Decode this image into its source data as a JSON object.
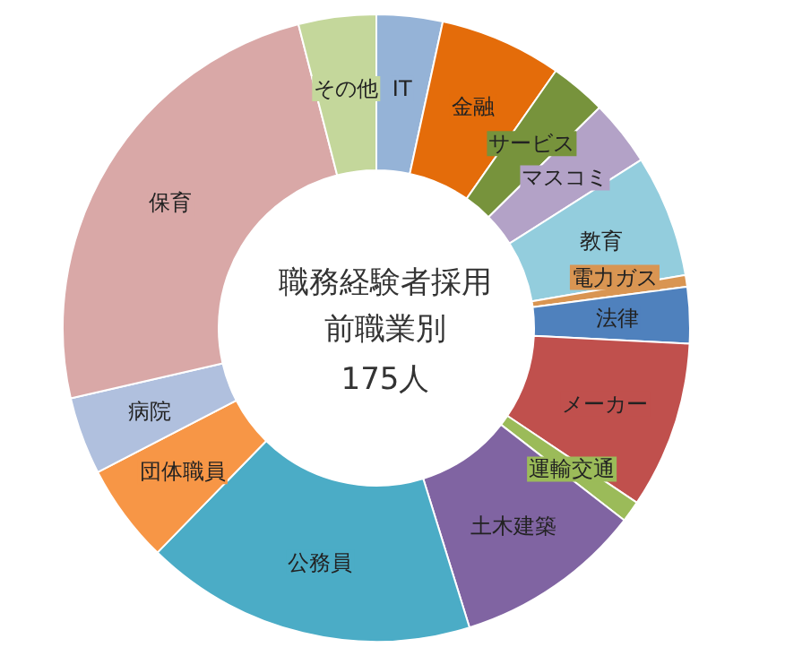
{
  "chart_data": {
    "type": "donut",
    "title": "職務経験者採用前職業別",
    "subtitle": "175人",
    "categories": [
      "IT",
      "金融",
      "サービス",
      "マスコミ",
      "教育",
      "電力ガス",
      "法律",
      "メーカー",
      "運輸交通",
      "土木建築",
      "公務員",
      "団体職員",
      "病院",
      "保育",
      "その他"
    ],
    "values": [
      3.4,
      6.3,
      2.9,
      3.4,
      6.3,
      0.6,
      2.9,
      8.6,
      1.1,
      9.7,
      17.1,
      5.1,
      4.0,
      24.6,
      4.0
    ],
    "colors": [
      "#95b3d7",
      "#e46c0a",
      "#77933c",
      "#b3a2c7",
      "#93cddd",
      "#d99552",
      "#4f81bd",
      "#c0504d",
      "#9bbb59",
      "#8064a2",
      "#4bacc6",
      "#f79646",
      "#b0c0de",
      "#d9a8a7",
      "#c4d79b"
    ],
    "legend": false
  }
}
